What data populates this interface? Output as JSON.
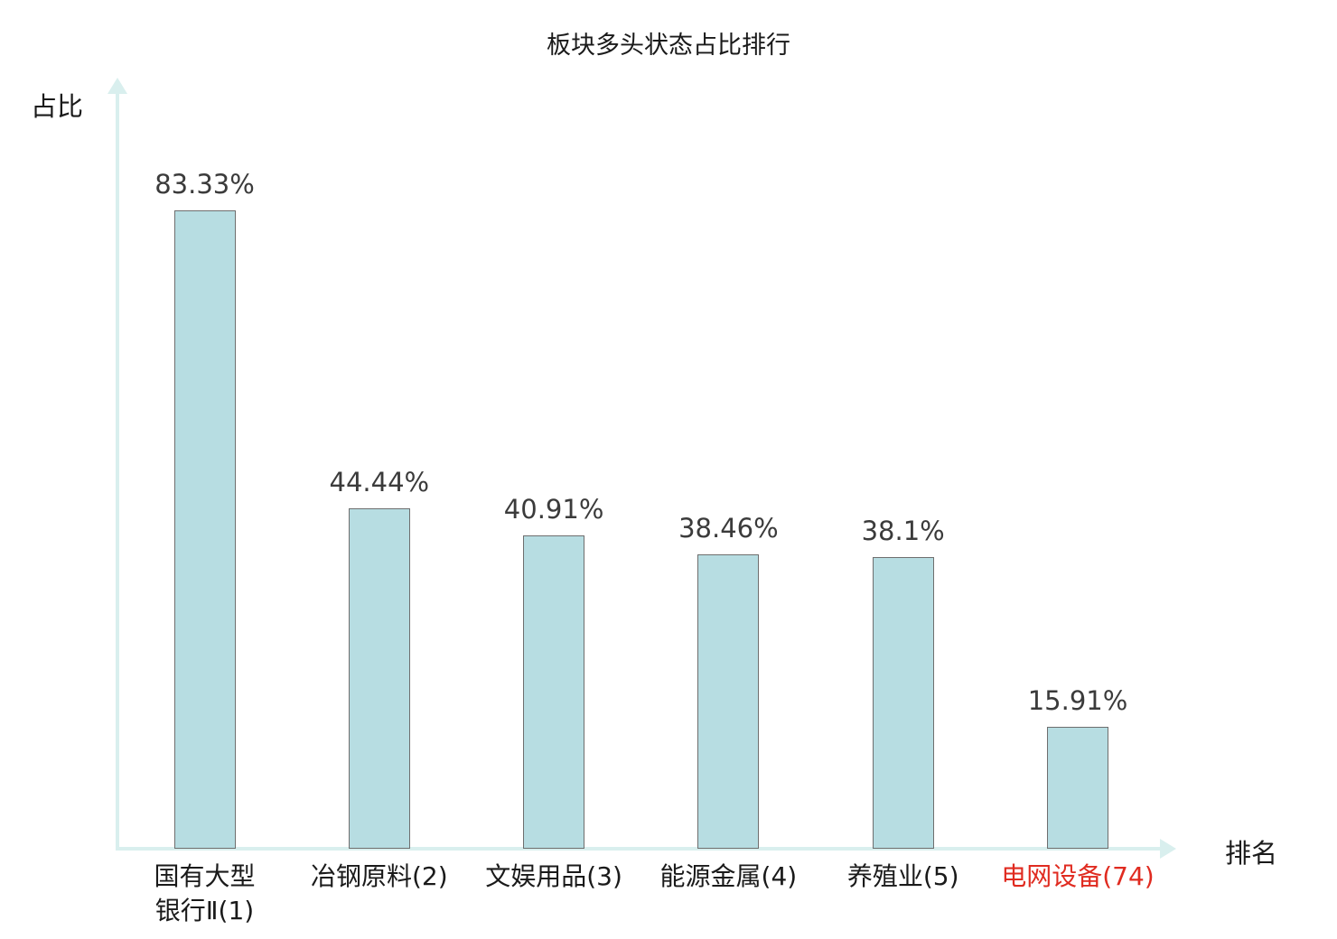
{
  "chart_data": {
    "type": "bar",
    "title": "板块多头状态占比排行",
    "xlabel": "排名",
    "ylabel": "占比",
    "categories": [
      "国有大型\n银行Ⅱ(1)",
      "冶钢原料(2)",
      "文娱用品(3)",
      "能源金属(4)",
      "养殖业(5)",
      "电网设备(74)"
    ],
    "values": [
      83.33,
      44.44,
      40.91,
      38.46,
      38.1,
      15.91
    ],
    "value_labels": [
      "83.33%",
      "44.44%",
      "40.91%",
      "38.46%",
      "38.1%",
      "15.91%"
    ],
    "highlight_index": 5,
    "ylim": [
      0,
      100
    ],
    "grid": false,
    "legend": "none",
    "colors": {
      "bar_fill": "#b7dde2",
      "bar_border": "#6e6e6e",
      "axis": "#d9efee",
      "value_text": "#3b3b3b",
      "category_text": "#1a1a1a",
      "highlight_text": "#e02b20",
      "title_text": "#1a1a1a"
    }
  }
}
